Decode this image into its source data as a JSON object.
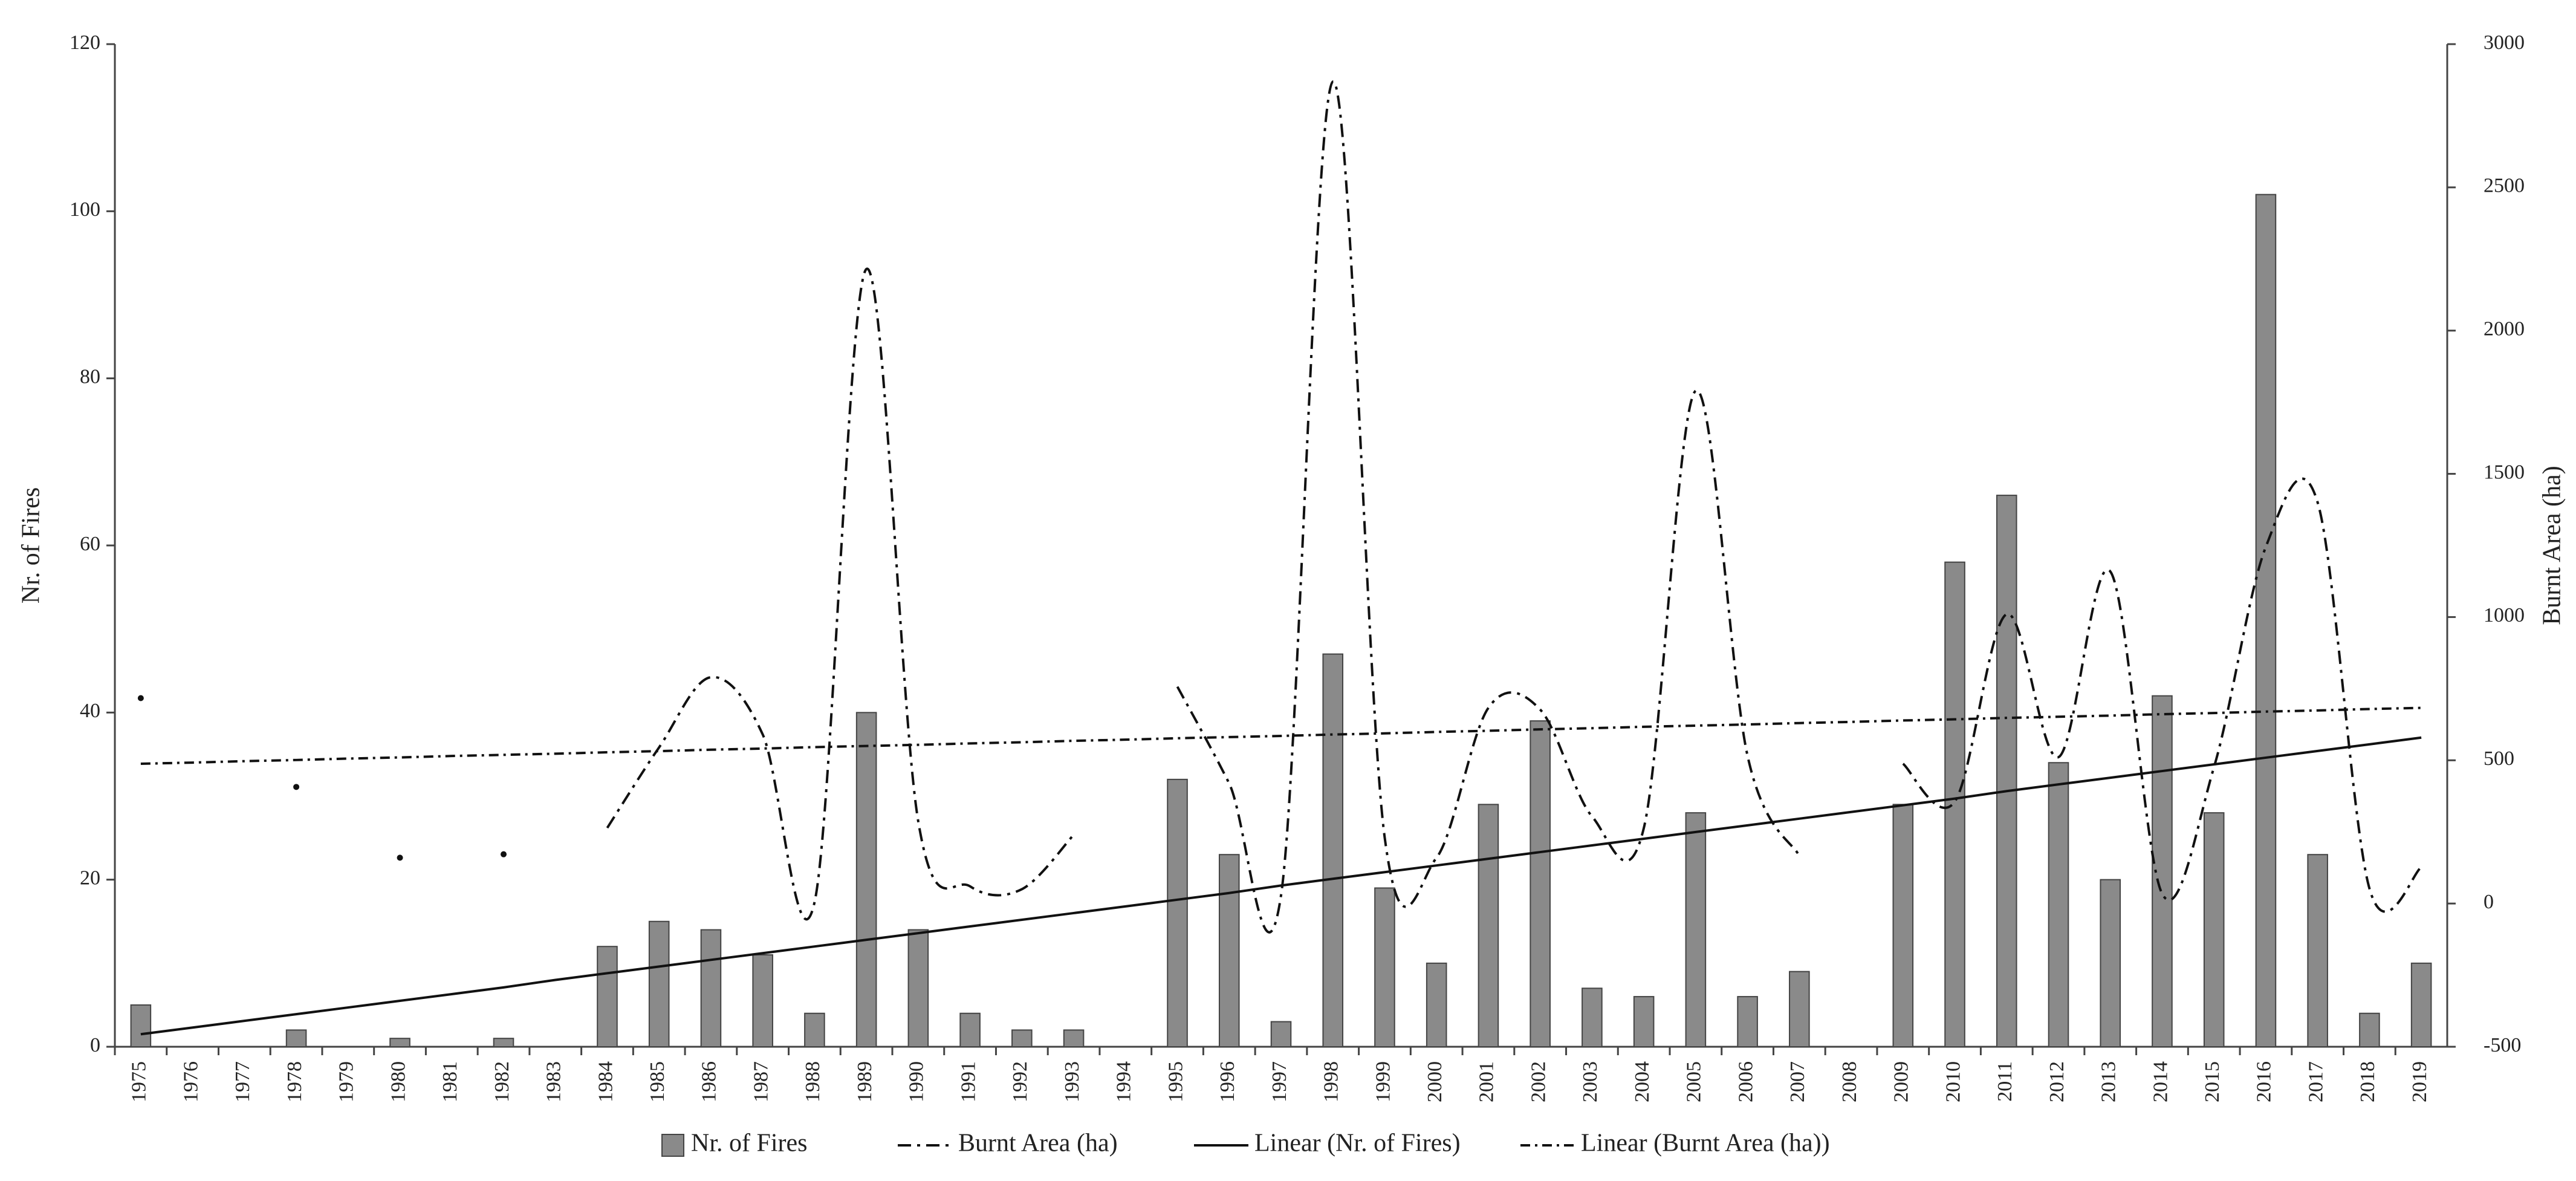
{
  "chart_data": {
    "type": "bar",
    "categories": [
      "1975",
      "1976",
      "1977",
      "1978",
      "1979",
      "1980",
      "1981",
      "1982",
      "1983",
      "1984",
      "1985",
      "1986",
      "1987",
      "1988",
      "1989",
      "1990",
      "1991",
      "1992",
      "1993",
      "1994",
      "1995",
      "1996",
      "1997",
      "1998",
      "1999",
      "2000",
      "2001",
      "2002",
      "2003",
      "2004",
      "2005",
      "2006",
      "2007",
      "2008",
      "2009",
      "2010",
      "2011",
      "2012",
      "2013",
      "2014",
      "2015",
      "2016",
      "2017",
      "2018",
      "2019"
    ],
    "series": [
      {
        "name": "Nr. of Fires",
        "kind": "bar",
        "color": "#8a8a8a",
        "axis": "y",
        "values": [
          5,
          0,
          0,
          2,
          0,
          1,
          0,
          1,
          0,
          12,
          15,
          14,
          11,
          4,
          40,
          14,
          4,
          2,
          2,
          0,
          32,
          23,
          3,
          47,
          19,
          10,
          29,
          39,
          7,
          6,
          28,
          6,
          9,
          0,
          29,
          58,
          66,
          34,
          20,
          42,
          28,
          102,
          23,
          4,
          10
        ]
      },
      {
        "name": "Burnt Area (ha)",
        "kind": "line",
        "dash": "dash-dot",
        "smooth": true,
        "color": "#111111",
        "axis": "y2",
        "values": [
          717,
          null,
          null,
          407,
          null,
          160,
          null,
          172,
          null,
          264,
          545,
          790,
          590,
          5,
          2215,
          287,
          60,
          50,
          240,
          null,
          757,
          419,
          29,
          2869,
          230,
          160,
          683,
          677,
          304,
          264,
          1790,
          516,
          166,
          null,
          488,
          356,
          1010,
          511,
          1159,
          34,
          476,
          1245,
          1400,
          52,
          126
        ]
      },
      {
        "name": "Linear (Nr. of Fires)",
        "kind": "line",
        "dash": "solid",
        "color": "#111111",
        "axis": "y",
        "values": [
          1.5,
          2.3,
          3.1,
          3.9,
          4.7,
          5.5,
          6.3,
          7.1,
          8.0,
          8.8,
          9.6,
          10.4,
          11.2,
          12.0,
          12.8,
          13.6,
          14.4,
          15.2,
          16.0,
          16.8,
          17.6,
          18.4,
          19.3,
          20.1,
          20.9,
          21.7,
          22.5,
          23.3,
          24.1,
          24.9,
          25.7,
          26.5,
          27.3,
          28.1,
          28.9,
          29.7,
          30.6,
          31.4,
          32.2,
          33.0,
          33.8,
          34.6,
          35.4,
          36.2,
          37.0
        ]
      },
      {
        "name": "Linear (Burnt Area (ha))",
        "kind": "line",
        "dash": "dash-dot-fine",
        "color": "#111111",
        "axis": "y2",
        "values": [
          488,
          492,
          497,
          501,
          506,
          510,
          515,
          519,
          523,
          528,
          532,
          537,
          541,
          546,
          550,
          554,
          559,
          563,
          568,
          572,
          577,
          581,
          585,
          590,
          594,
          599,
          603,
          608,
          612,
          617,
          621,
          625,
          630,
          634,
          639,
          643,
          648,
          652,
          656,
          661,
          665,
          670,
          674,
          679,
          683
        ]
      }
    ],
    "y_label": "Nr. of Fires",
    "y2_label": "Burnt Area (ha)",
    "ylim": [
      0,
      120
    ],
    "yticks": [
      0,
      20,
      40,
      60,
      80,
      100,
      120
    ],
    "y2lim": [
      -500,
      3000
    ],
    "y2ticks": [
      -500,
      0,
      500,
      1000,
      1500,
      2000,
      2500,
      3000
    ],
    "grid": false,
    "legend": "bottom"
  }
}
